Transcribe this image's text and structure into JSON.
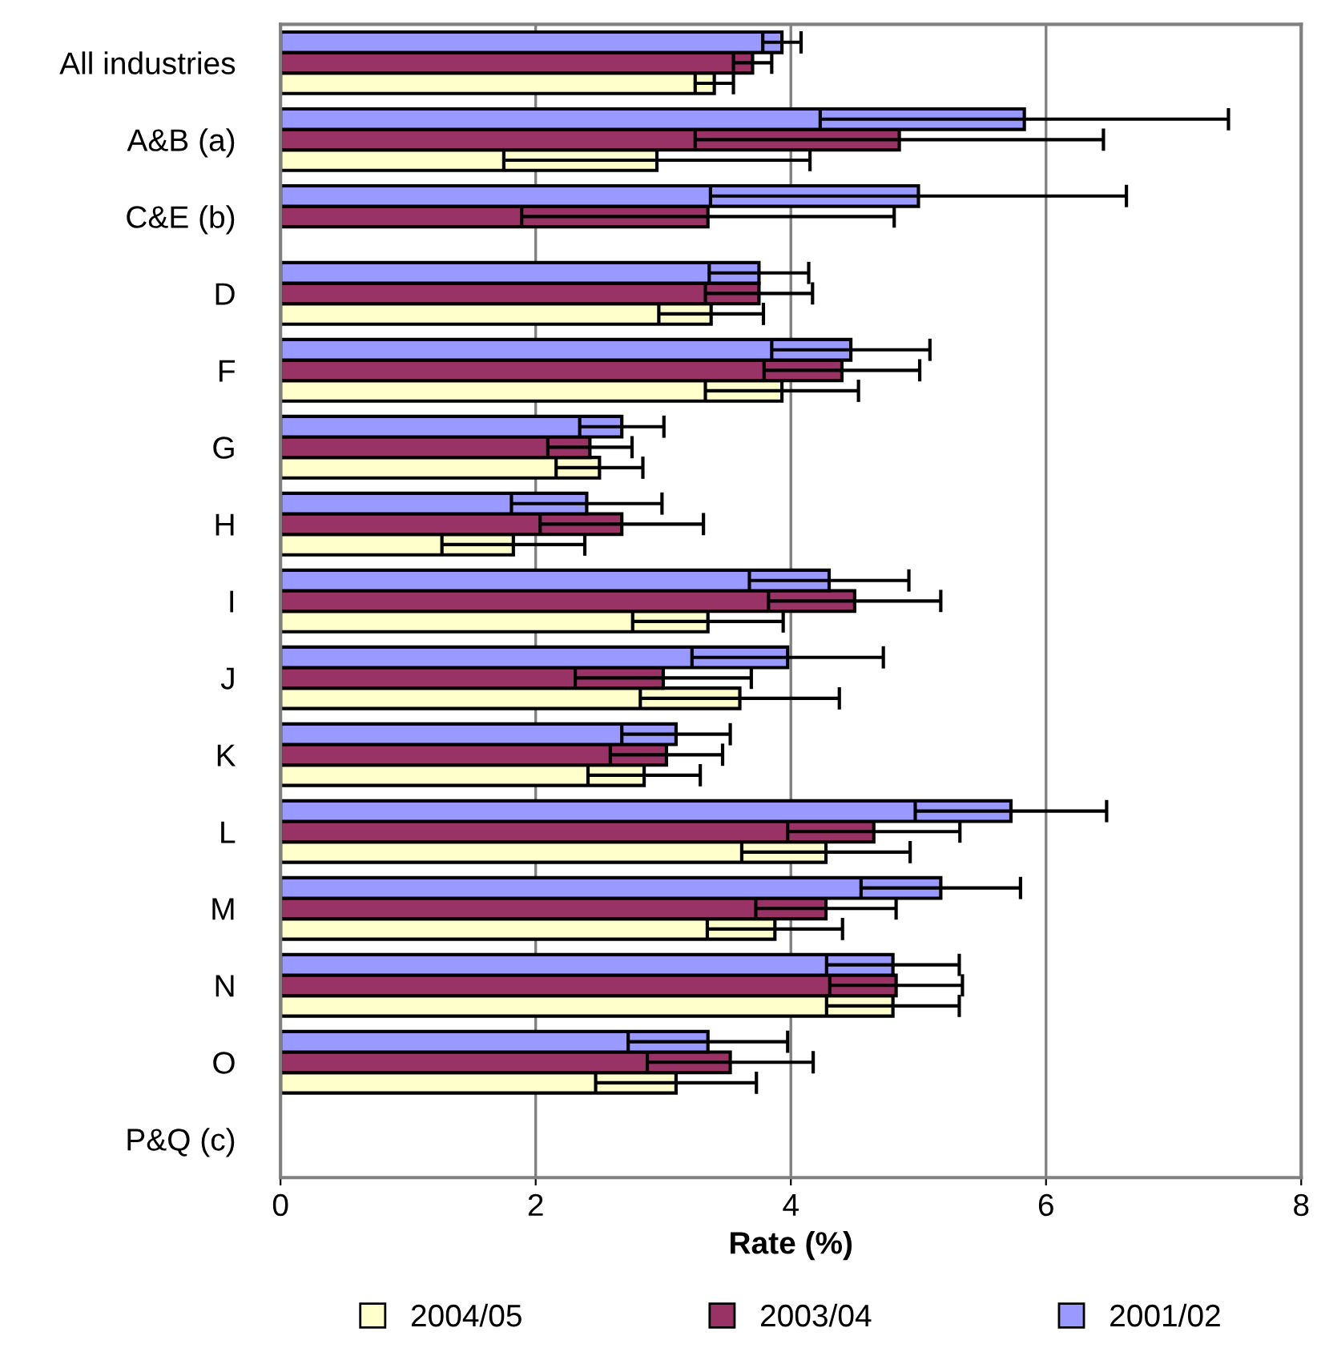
{
  "chart_data": {
    "type": "bar",
    "orientation": "horizontal",
    "xlabel": "Rate (%)",
    "categories": [
      "All industries",
      "A&B (a)",
      "C&E (b)",
      "D",
      "F",
      "G",
      "H",
      "I",
      "J",
      "K",
      "L",
      "M",
      "N",
      "O",
      "P&Q (c)"
    ],
    "series": [
      {
        "name": "2004/05",
        "color": "#ffffcc",
        "values": [
          3.4,
          2.95,
          null,
          3.375,
          3.93,
          2.5,
          1.825,
          3.35,
          3.6,
          2.85,
          4.275,
          3.875,
          4.8,
          3.1,
          null
        ],
        "errors": [
          0.15,
          1.2,
          null,
          0.41,
          0.6,
          0.34,
          0.56,
          0.59,
          0.78,
          0.44,
          0.66,
          0.53,
          0.52,
          0.63,
          null
        ]
      },
      {
        "name": "2003/04",
        "color": "#993366",
        "values": [
          3.7,
          4.85,
          3.35,
          3.75,
          4.4,
          2.425,
          2.675,
          4.5,
          3.0,
          3.025,
          4.65,
          4.275,
          4.825,
          3.525,
          null
        ],
        "errors": [
          0.15,
          1.6,
          1.46,
          0.42,
          0.61,
          0.33,
          0.64,
          0.675,
          0.69,
          0.44,
          0.675,
          0.55,
          0.52,
          0.65,
          null
        ]
      },
      {
        "name": "2001/02",
        "color": "#9999ff",
        "values": [
          3.93,
          5.83,
          5.0,
          3.75,
          4.47,
          2.675,
          2.4,
          4.3,
          3.975,
          3.1,
          5.725,
          5.175,
          4.8,
          3.35,
          null
        ],
        "errors": [
          0.15,
          1.6,
          1.63,
          0.39,
          0.62,
          0.33,
          0.59,
          0.625,
          0.75,
          0.425,
          0.75,
          0.625,
          0.52,
          0.625,
          null
        ]
      }
    ],
    "xlim": [
      0,
      8
    ],
    "xticks": [
      0,
      2,
      4,
      6,
      8
    ],
    "grid": "x",
    "legend": "bottom"
  }
}
